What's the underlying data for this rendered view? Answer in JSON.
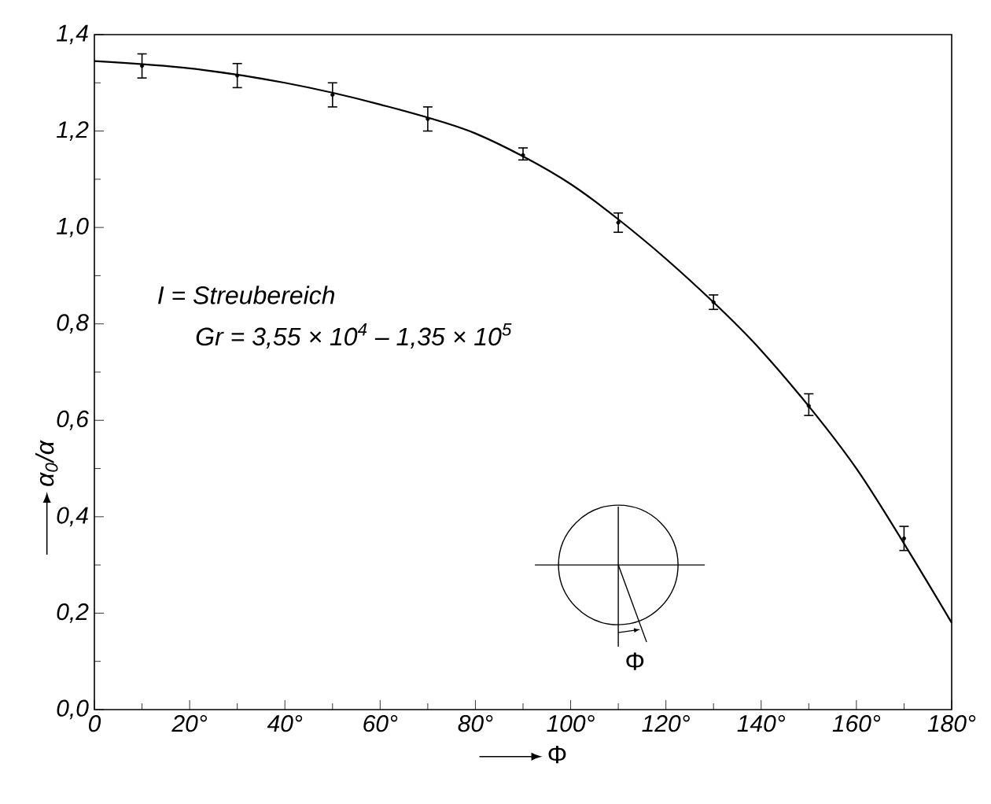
{
  "chart_data": {
    "type": "line",
    "xlabel": "Φ",
    "ylabel": "α$_{0}$/α",
    "xlim": [
      0,
      180
    ],
    "ylim": [
      0,
      1.4
    ],
    "xticks": [
      0,
      {
        "value": 20,
        "label": "20°"
      },
      {
        "value": 40,
        "label": "40°"
      },
      {
        "value": 60,
        "label": "60°"
      },
      {
        "value": 80,
        "label": "80°"
      },
      {
        "value": 100,
        "label": "100°"
      },
      {
        "value": 120,
        "label": "120°"
      },
      {
        "value": 140,
        "label": "140°"
      },
      {
        "value": 160,
        "label": "160°"
      },
      {
        "value": 180,
        "label": "180°"
      }
    ],
    "yticks": [
      {
        "value": 0,
        "label": "0,0"
      },
      {
        "value": 0.2,
        "label": "0,2"
      },
      {
        "value": 0.4,
        "label": "0,4"
      },
      {
        "value": 0.6,
        "label": "0,6"
      },
      {
        "value": 0.8,
        "label": "0,8"
      },
      {
        "value": 1.0,
        "label": "1,0"
      },
      {
        "value": 1.2,
        "label": "1,2"
      },
      {
        "value": 1.4,
        "label": "1,4"
      }
    ],
    "series": [
      {
        "type": "line",
        "color": "#000000",
        "x": [
          0,
          20,
          40,
          60,
          80,
          100,
          120,
          140,
          160,
          180
        ],
        "values": [
          1.345,
          1.33,
          1.3,
          1.255,
          1.195,
          1.09,
          0.935,
          0.745,
          0.5,
          0.18
        ]
      },
      {
        "type": "scatter",
        "marker": "circle",
        "color": "#000000",
        "x": [
          10,
          30,
          50,
          70,
          90,
          110,
          130,
          150,
          170
        ],
        "values": [
          1.335,
          1.315,
          1.275,
          1.225,
          1.15,
          1.01,
          0.845,
          0.63,
          0.355
        ],
        "errors": [
          [
            1.31,
            1.36
          ],
          [
            1.29,
            1.34
          ],
          [
            1.25,
            1.3
          ],
          [
            1.2,
            1.25
          ],
          [
            1.14,
            1.165
          ],
          [
            0.99,
            1.03
          ],
          [
            0.83,
            0.86
          ],
          [
            0.61,
            0.655
          ],
          [
            0.33,
            0.38
          ]
        ]
      }
    ],
    "annotations": [
      "I = Streubereich",
      "Gr = 3,55 × 10$^{4}$ – 1,35 × 10$^{5}$",
      "Φ"
    ],
    "grid": false
  }
}
